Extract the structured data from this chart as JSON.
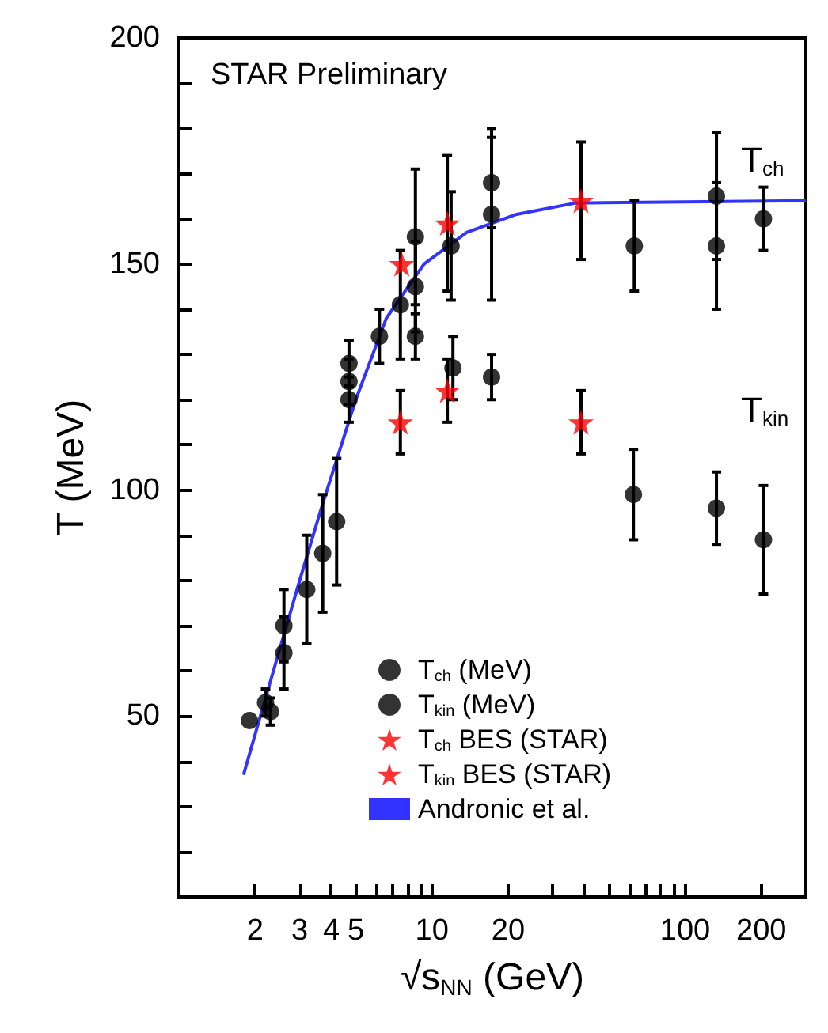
{
  "chart_data": {
    "type": "scatter",
    "xlabel": "√s$_{NN}$ (GeV)",
    "ylabel": "T (MeV)",
    "annotations": [
      "STAR Preliminary",
      "T$_{ch}$",
      "T$_{kin}$"
    ],
    "log": "x",
    "xlim": [
      1,
      300
    ],
    "xticks": [
      2,
      3,
      4,
      5,
      {
        "value": 6,
        "label": null
      },
      {
        "value": 7,
        "label": null
      },
      {
        "value": 8,
        "label": null
      },
      {
        "value": 9,
        "label": null
      },
      10,
      20,
      {
        "value": 30,
        "label": null
      },
      {
        "value": 40,
        "label": null
      },
      {
        "value": 50,
        "label": null
      },
      {
        "value": 60,
        "label": null
      },
      {
        "value": 70,
        "label": null
      },
      {
        "value": 80,
        "label": null
      },
      {
        "value": 90,
        "label": null
      },
      100,
      200
    ],
    "ylim": [
      10,
      200
    ],
    "yticks": [
      {
        "value": 20,
        "label": null
      },
      {
        "value": 30,
        "label": null
      },
      {
        "value": 40,
        "label": null
      },
      50,
      {
        "value": 60,
        "label": null
      },
      {
        "value": 70,
        "label": null
      },
      {
        "value": 80,
        "label": null
      },
      {
        "value": 90,
        "label": null
      },
      100,
      {
        "value": 110,
        "label": null
      },
      {
        "value": 120,
        "label": null
      },
      {
        "value": 130,
        "label": null
      },
      {
        "value": 140,
        "label": null
      },
      150,
      {
        "value": 160,
        "label": null
      },
      {
        "value": 170,
        "label": null
      },
      {
        "value": 180,
        "label": null
      },
      {
        "value": 190,
        "label": null
      },
      200
    ],
    "grid": false,
    "legend": "bottom left",
    "series": [
      {
        "name": "T$_{ch}$ (MeV)",
        "color": "#000000",
        "marker": "circle",
        "x": [
          1.9,
          2.2,
          2.3,
          2.6,
          2.6,
          3.2,
          3.7,
          4.2,
          4.7,
          4.7,
          4.7,
          6.2,
          7.5,
          8.6,
          8.6,
          11.9,
          17.2,
          17.2,
          63,
          133,
          133,
          204
        ],
        "values": [
          49,
          53,
          51,
          64,
          70,
          78,
          86,
          93,
          128,
          124,
          120,
          134,
          141,
          145,
          156,
          154,
          161,
          168,
          154,
          165,
          154,
          160
        ],
        "errors": [
          null,
          3,
          3,
          8,
          8,
          12,
          13,
          14,
          5,
          5,
          5,
          6,
          12,
          10,
          15,
          12,
          19,
          10,
          10,
          14,
          14,
          7
        ]
      },
      {
        "name": "T$_{kin}$ (MeV)",
        "color": "#000000",
        "marker": "circle",
        "x": [
          8.6,
          12.1,
          17.2,
          62.5,
          133,
          204
        ],
        "values": [
          134,
          127,
          125,
          99,
          96,
          89
        ],
        "errors": [
          5,
          7,
          5,
          10,
          8,
          12
        ]
      },
      {
        "name": "T$_{ch}$ BES (STAR)",
        "color": "#ff0000",
        "marker": "star",
        "x": [
          7.6,
          11.5,
          38.8
        ],
        "values": [
          150,
          159,
          164
        ],
        "errors": [
          null,
          15,
          13
        ]
      },
      {
        "name": "T$_{kin}$ BES (STAR)",
        "color": "#ff0000",
        "marker": "star",
        "x": [
          7.5,
          11.5,
          38.8
        ],
        "values": [
          115,
          122,
          115
        ],
        "errors": [
          7,
          7,
          7
        ]
      },
      {
        "name": "Andronic et al.",
        "type": "line",
        "color": "#3333ff",
        "marker": "none",
        "x": [
          1.8,
          2.2,
          3,
          3.7,
          5,
          6.6,
          9.3,
          13.7,
          21.6,
          37,
          300
        ],
        "values": [
          37,
          54,
          80,
          97,
          120,
          138,
          150,
          157,
          161,
          163.5,
          164
        ]
      }
    ]
  }
}
